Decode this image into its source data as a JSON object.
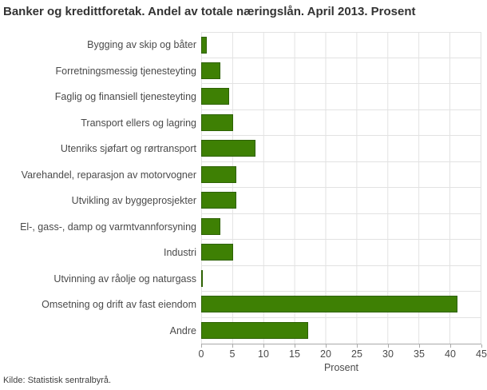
{
  "title": "Banker og kredittforetak. Andel av totale næringslån. April 2013. Prosent",
  "source": "Kilde: Statistisk sentralbyrå.",
  "chart_data": {
    "type": "bar",
    "orientation": "horizontal",
    "title": "Banker og kredittforetak. Andel av totale næringslån. April 2013. Prosent",
    "categories": [
      "Bygging av skip og båter",
      "Forretningsmessig tjenesteyting",
      "Faglig og finansiell tjenesteyting",
      "Transport ellers og lagring",
      "Utenriks sjøfart og rørtransport",
      "Varehandel, reparasjon av motorvogner",
      "Utvikling av byggeprosjekter",
      "El-, gass-, damp og varmtvannforsyning",
      "Industri",
      "Utvinning av råolje og naturgass",
      "Omsetning og drift av fast eiendom",
      "Andre"
    ],
    "values": [
      0.9,
      3.1,
      4.5,
      5.1,
      8.7,
      5.7,
      5.6,
      3.1,
      5.2,
      0.3,
      41.3,
      17.2
    ],
    "xlabel": "Prosent",
    "ylabel": "",
    "xlim": [
      0,
      45
    ],
    "xticks": [
      0,
      5,
      10,
      15,
      20,
      25,
      30,
      35,
      40,
      45
    ],
    "grid": true,
    "legend": "none",
    "bar_color": "#3e8004",
    "bar_border_color": "#2d6103",
    "grid_color": "#e2e2e2",
    "axis_color": "#a9a9a9"
  }
}
